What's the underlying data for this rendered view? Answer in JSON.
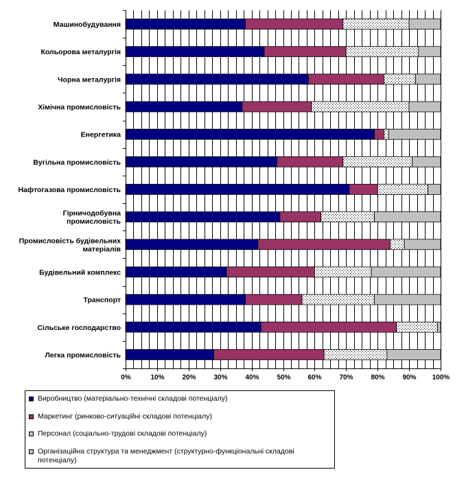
{
  "chart_data": {
    "type": "bar",
    "orientation": "horizontal",
    "stacked": "percent",
    "title": "",
    "xlabel": "",
    "ylabel": "",
    "xlim": [
      0,
      100
    ],
    "x_ticks": [
      "0%",
      "10%",
      "20%",
      "30%",
      "40%",
      "50%",
      "60%",
      "70%",
      "80%",
      "90%",
      "100%"
    ],
    "categories": [
      [
        "Машинобудування"
      ],
      [
        "Кольорова металургія"
      ],
      [
        "Чорна металургія"
      ],
      [
        "Хімічна промисловість"
      ],
      [
        "Енергетика"
      ],
      [
        "Вугільна промисловість"
      ],
      [
        "Нафтогазова промисловість"
      ],
      [
        "Гірничодобувна",
        "промисловість"
      ],
      [
        "Промисловість будівельних",
        "матеріалів"
      ],
      [
        "Будівельний комплекс"
      ],
      [
        "Транспорт"
      ],
      [
        "Сільське господарство"
      ],
      [
        "Легка промисловість"
      ]
    ],
    "series": [
      {
        "name": "Виробництво (матеріально-технічні складові потенціалу)",
        "color": "#000080",
        "pattern": "solid",
        "values": [
          38,
          44,
          58,
          37,
          79,
          48,
          71,
          49,
          42,
          32,
          38,
          43,
          28
        ]
      },
      {
        "name": "Маркетинг (ринково-ситуаційні складові потенціалу)",
        "color": "#993366",
        "pattern": "solid",
        "values": [
          31,
          26,
          24,
          22,
          3,
          21,
          9,
          13,
          42,
          28,
          18,
          43,
          35
        ]
      },
      {
        "name": "Персонал (соціально-трудові складові потенціалу)",
        "color": "#ffffff",
        "pattern": "dots",
        "values": [
          21,
          23,
          10,
          31,
          1.5,
          22,
          16,
          17,
          4.5,
          18,
          23,
          13,
          20
        ]
      },
      {
        "name": "Організаційна структура та менеджмент (структурно-функціональні складові потенціалу)",
        "color": "#c0c0c0",
        "pattern": "solid",
        "values": [
          10,
          7,
          8,
          10,
          16.5,
          9,
          4,
          21,
          11.5,
          22,
          21,
          1,
          17
        ]
      }
    ],
    "legend_position": "bottom",
    "grid": true
  }
}
